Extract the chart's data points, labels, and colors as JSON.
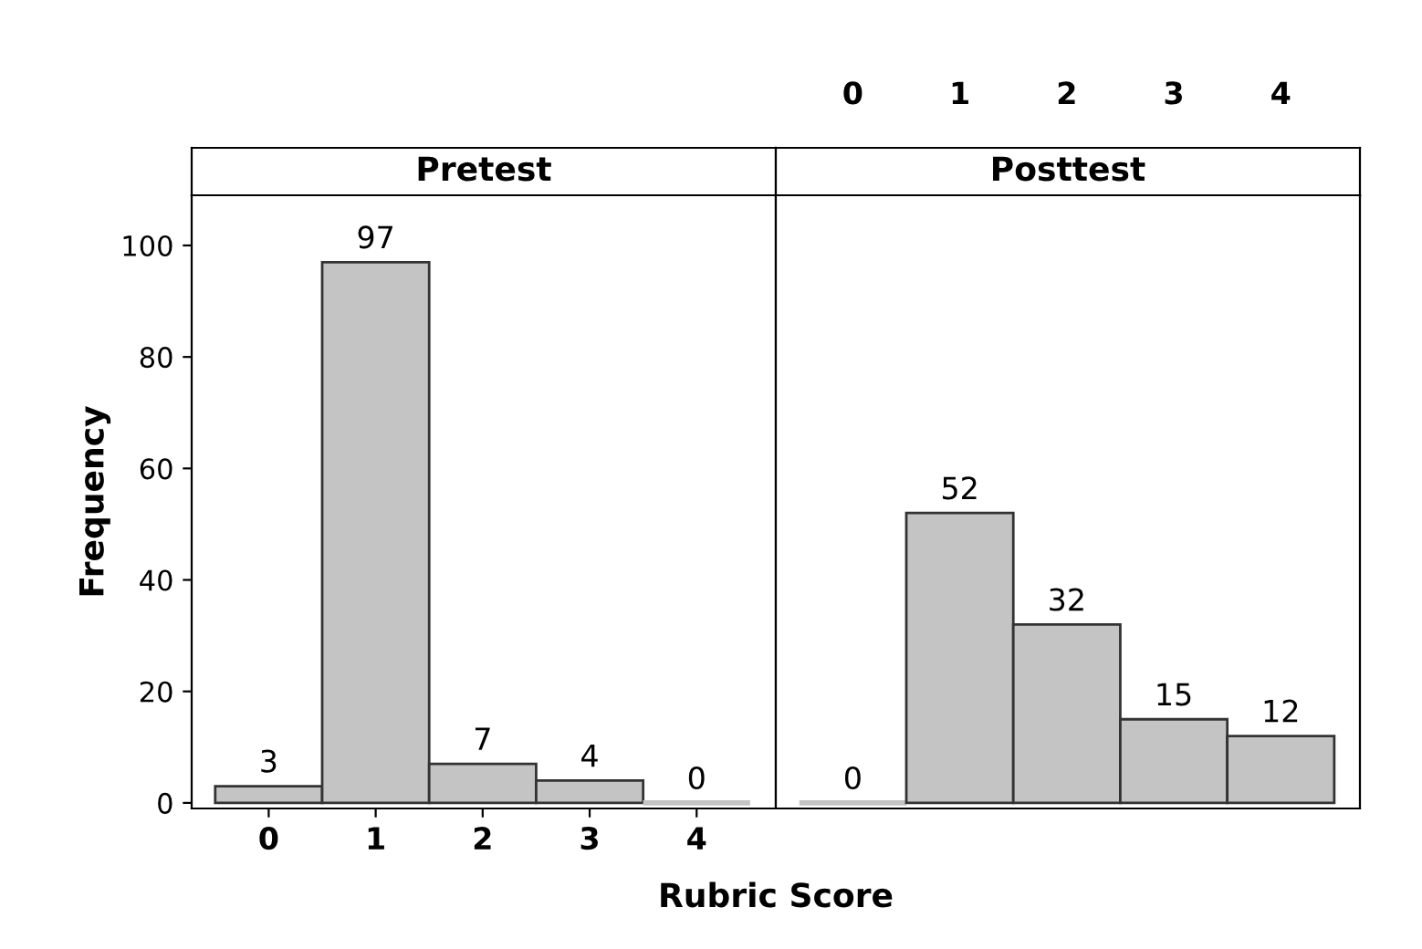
{
  "chart_data": [
    {
      "type": "bar",
      "title": "Pretest",
      "xlabel": "Rubric Score",
      "ylabel": "Frequency",
      "categories": [
        "0",
        "1",
        "2",
        "3",
        "4"
      ],
      "values": [
        3,
        97,
        7,
        4,
        0
      ],
      "color": "#c4c4c4",
      "ylim": [
        -1,
        109
      ],
      "yticks": [
        0,
        20,
        40,
        60,
        80,
        100
      ],
      "data_labels": true
    },
    {
      "type": "bar",
      "title": "Posttest",
      "categories": [
        "0",
        "1",
        "2",
        "3",
        "4"
      ],
      "values": [
        0,
        52,
        32,
        15,
        12
      ],
      "color": "#c4c4c4",
      "ylim": [
        -1,
        109
      ],
      "yticks": [
        0,
        20,
        40,
        60,
        80,
        100
      ],
      "data_labels": true,
      "tick_labels": "x"
    }
  ]
}
